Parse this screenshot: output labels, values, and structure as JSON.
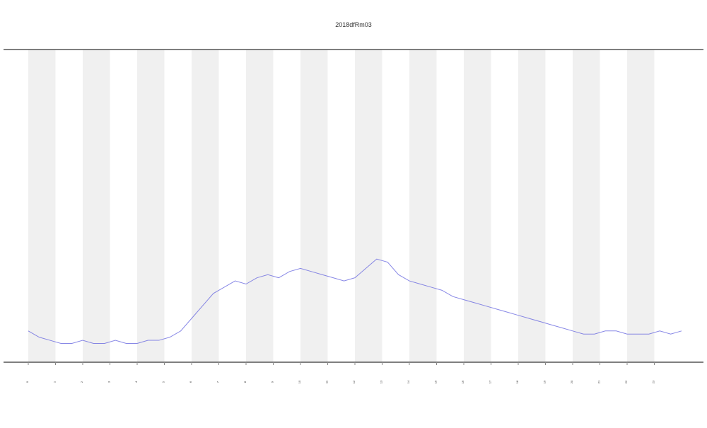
{
  "chart_data": {
    "type": "line",
    "title": "2018dfRm03",
    "x": [
      0,
      0.4,
      0.8,
      1.2,
      1.6,
      2,
      2.4,
      2.8,
      3.2,
      3.6,
      4,
      4.4,
      4.8,
      5.2,
      5.6,
      6,
      6.4,
      6.8,
      7.2,
      7.6,
      8,
      8.4,
      8.8,
      9.2,
      9.6,
      10,
      10.4,
      10.8,
      11.2,
      11.6,
      12,
      12.4,
      12.8,
      13.2,
      13.6,
      14,
      14.4,
      14.8,
      15.2,
      15.6,
      16,
      16.4,
      16.8,
      17.2,
      17.6,
      18,
      18.4,
      18.8,
      19.2,
      19.6,
      20,
      20.4,
      20.8,
      21.2,
      21.6,
      22,
      22.4,
      22.8,
      23.2,
      23.6,
      24
    ],
    "series": [
      {
        "color": "#6a6ae0",
        "values": [
          10,
          8,
          7,
          6,
          6,
          7,
          6,
          6,
          7,
          6,
          6,
          7,
          7,
          8,
          10,
          14,
          18,
          22,
          24,
          26,
          25,
          27,
          28,
          27,
          29,
          30,
          29,
          28,
          27,
          26,
          27,
          30,
          33,
          32,
          28,
          26,
          25,
          24,
          23,
          21,
          20,
          19,
          18,
          17,
          16,
          15,
          14,
          13,
          12,
          11,
          10,
          9,
          9,
          10,
          10,
          9,
          9,
          9,
          10,
          9,
          10
        ]
      }
    ],
    "xlim": [
      0,
      24
    ],
    "ylim": [
      0,
      100
    ],
    "xticks": [
      0,
      1,
      2,
      3,
      4,
      5,
      6,
      7,
      8,
      9,
      10,
      11,
      12,
      13,
      14,
      15,
      16,
      17,
      18,
      19,
      20,
      21,
      22,
      23
    ]
  }
}
